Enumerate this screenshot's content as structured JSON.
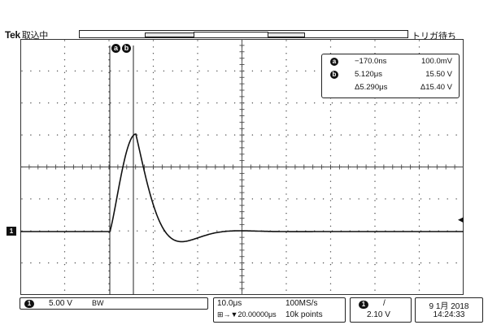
{
  "header": {
    "brand": "Tek",
    "acquisition_status": "取込中",
    "trigger_status": "トリガ待ち"
  },
  "cursors": {
    "a_label": "a",
    "b_label": "b"
  },
  "readout": {
    "a_time": "−170.0ns",
    "a_value": "100.0mV",
    "b_time": "5.120μs",
    "b_value": "15.50 V",
    "delta_time": "Δ5.290μs",
    "delta_value": "Δ15.40 V"
  },
  "channel": {
    "number": "1",
    "scale": "5.00 V",
    "bandwidth_icon": "bw-limit-icon",
    "bandwidth_symbol": "BW"
  },
  "timebase": {
    "horizontal_scale": "10.0μs",
    "position": "20.00000μs",
    "sample_rate": "100MS/s",
    "record_length": "10k points"
  },
  "trigger": {
    "source": "1",
    "slope": "/",
    "level": "2.10 V"
  },
  "datetime": {
    "date": "9 1月 2018",
    "time": "14:24:33"
  },
  "colors": {
    "trace": "#111111",
    "grid": "#555555",
    "background": "#ffffff"
  }
}
